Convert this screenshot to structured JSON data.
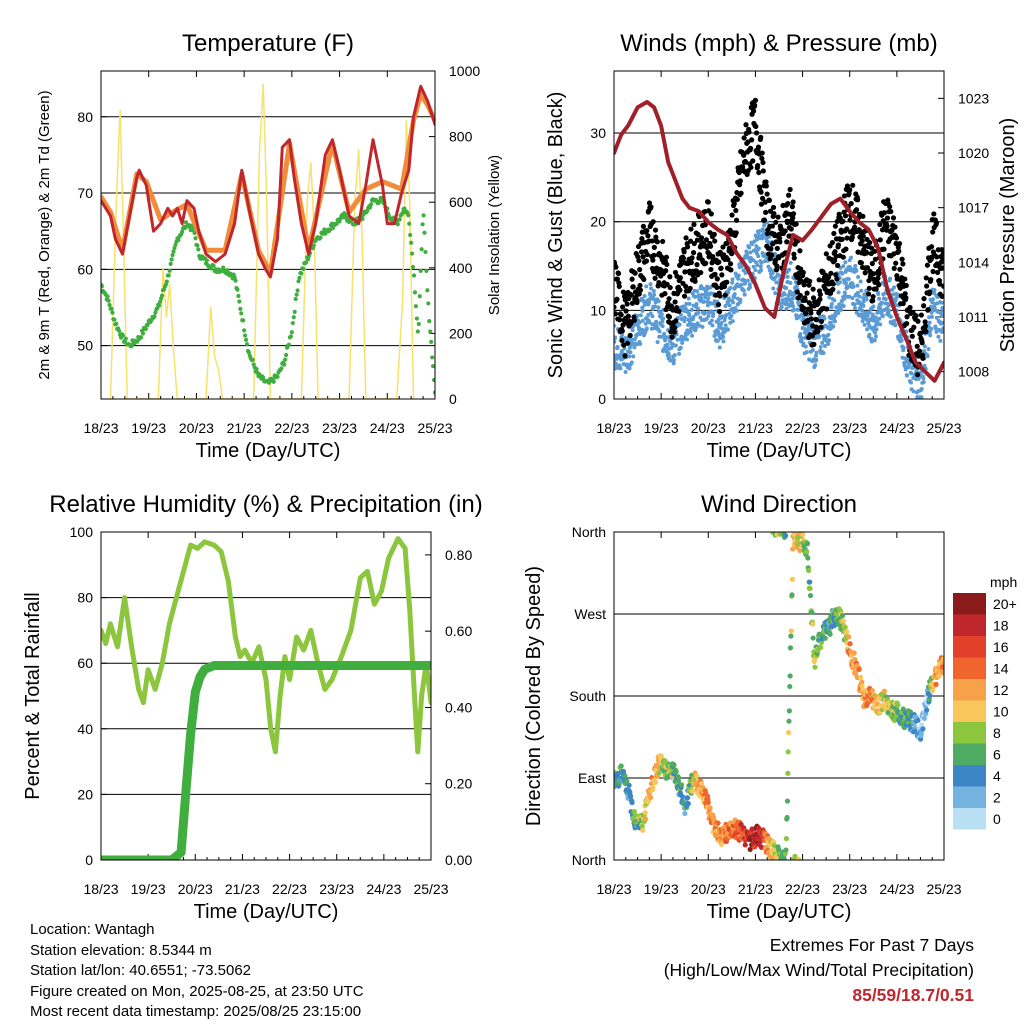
{
  "colors": {
    "temp_red": "#c0272d",
    "temp_orange": "#f08c3a",
    "dewpoint_green": "#3fae3f",
    "solar_yellow": "#f7e26b",
    "wind_blue": "#5b9bd5",
    "gust_black": "#000000",
    "pressure_maroon": "#a0202a",
    "rh_green": "#8cc63f",
    "precip_green": "#3fae3f",
    "extremes_red": "#c0272d"
  },
  "info": {
    "location": "Location: Wantagh",
    "elevation": "Station elevation: 8.5344 m",
    "latlon": "Station lat/lon: 40.6551; -73.5062",
    "created": "Figure created on Mon, 2025-08-25, at 23:50 UTC",
    "recent": "Most recent data timestamp: 2025/08/25 23:15:00"
  },
  "extremes": {
    "line1": "Extremes For Past 7 Days",
    "line2": "(High/Low/Max Wind/Total Precipitation)",
    "values": "85/59/18.7/0.51"
  },
  "chart_data": [
    {
      "id": "temperature",
      "type": "line",
      "title": "Temperature (F)",
      "xlabel": "Time (Day/UTC)",
      "ylabel": "2m & 9m T (Red, Orange) & 2m Td (Green)",
      "y2label": "Solar Insolation (Yellow)",
      "x_ticks": [
        "18/23",
        "19/23",
        "20/23",
        "21/23",
        "22/23",
        "23/23",
        "24/23",
        "25/23"
      ],
      "xlim": [
        0,
        7
      ],
      "ylim": [
        43,
        86
      ],
      "y_ticks": [
        50,
        60,
        70,
        80
      ],
      "y2lim": [
        0,
        1000
      ],
      "y2_ticks": [
        0,
        200,
        400,
        600,
        800,
        1000
      ],
      "grid": "horizontal",
      "series": [
        {
          "name": "2m T",
          "axis": "left",
          "x": [
            0,
            0.1,
            0.2,
            0.3,
            0.45,
            0.6,
            0.75,
            0.8,
            0.95,
            1.1,
            1.25,
            1.4,
            1.5,
            1.6,
            1.7,
            1.8,
            1.95,
            2.05,
            2.2,
            2.4,
            2.6,
            2.8,
            2.95,
            3.1,
            3.3,
            3.45,
            3.55,
            3.7,
            3.8,
            3.95,
            4.05,
            4.2,
            4.35,
            4.5,
            4.7,
            4.85,
            5.0,
            5.2,
            5.4,
            5.55,
            5.7,
            5.9,
            6.0,
            6.15,
            6.3,
            6.45,
            6.55,
            6.7,
            6.85,
            6.95,
            7.0
          ],
          "y": [
            69,
            68,
            67,
            64,
            62,
            67,
            72,
            73,
            71,
            65,
            66,
            68,
            67,
            68,
            66,
            69,
            68,
            65,
            62,
            61,
            62,
            66,
            73,
            68,
            62,
            60,
            59,
            64,
            76,
            77,
            72,
            66,
            62,
            66,
            75,
            77,
            73,
            67,
            66,
            71,
            77,
            71,
            66,
            66,
            70,
            73,
            80,
            84,
            82,
            80,
            79
          ]
        },
        {
          "name": "9m T",
          "axis": "left",
          "x": [
            0,
            0.2,
            0.45,
            0.75,
            0.95,
            1.25,
            1.5,
            1.8,
            2.2,
            2.6,
            2.95,
            3.3,
            3.55,
            3.95,
            4.35,
            4.85,
            5.2,
            5.55,
            5.9,
            6.3,
            6.55,
            6.7,
            6.85,
            7.0
          ],
          "y": [
            69.5,
            67.5,
            62.5,
            72.5,
            71.5,
            66.5,
            67.5,
            68.5,
            62.5,
            62.5,
            72.5,
            62.5,
            59.5,
            76.5,
            62.5,
            76.5,
            67.5,
            70.5,
            71.5,
            70.5,
            79.5,
            83,
            81.5,
            79.5
          ]
        },
        {
          "name": "2m Td",
          "axis": "left",
          "x": [
            0,
            0.15,
            0.3,
            0.45,
            0.6,
            0.8,
            1.0,
            1.2,
            1.4,
            1.6,
            1.8,
            1.95,
            2.05,
            2.2,
            2.4,
            2.6,
            2.8,
            2.95,
            3.1,
            3.3,
            3.5,
            3.7,
            3.85,
            4.0,
            4.15,
            4.3,
            4.5,
            4.7,
            4.9,
            5.1,
            5.3,
            5.5,
            5.7,
            5.9,
            6.05,
            6.2,
            6.35,
            6.45,
            6.55,
            6.65,
            6.75,
            6.85,
            6.95,
            7.0
          ],
          "y": [
            58,
            56,
            53,
            51,
            50,
            51,
            53,
            55,
            59,
            64,
            66,
            65,
            62,
            61,
            60,
            60,
            59,
            54,
            49,
            46,
            45,
            46,
            48,
            52,
            59,
            61,
            64,
            65,
            66,
            67,
            66,
            67,
            69,
            69,
            67,
            66,
            68,
            67,
            60,
            51,
            68,
            56,
            48,
            44
          ]
        },
        {
          "name": "Solar Insolation",
          "axis": "right",
          "x": [
            0.2,
            0.32,
            0.4,
            0.47,
            0.55,
            1.2,
            1.3,
            1.37,
            1.44,
            1.52,
            1.6,
            2.2,
            2.3,
            2.38,
            2.46,
            2.55,
            3.2,
            3.32,
            3.4,
            3.47,
            3.55,
            4.2,
            4.32,
            4.4,
            4.47,
            4.55,
            5.2,
            5.32,
            5.4,
            5.47,
            5.55,
            6.2,
            6.32,
            6.4,
            6.47,
            6.55
          ],
          "y": [
            0,
            600,
            880,
            500,
            0,
            0,
            400,
            250,
            350,
            150,
            0,
            0,
            280,
            130,
            90,
            0,
            0,
            750,
            960,
            620,
            0,
            0,
            600,
            720,
            500,
            0,
            0,
            600,
            760,
            500,
            0,
            0,
            300,
            850,
            600,
            0
          ]
        }
      ]
    },
    {
      "id": "winds",
      "type": "scatter",
      "title": "Winds (mph) & Pressure (mb)",
      "xlabel": "Time (Day/UTC)",
      "ylabel": "Sonic Wind & Gust (Blue, Black)",
      "y2label": "Station Pressure (Maroon)",
      "x_ticks": [
        "18/23",
        "19/23",
        "20/23",
        "21/23",
        "22/23",
        "23/23",
        "24/23",
        "25/23"
      ],
      "xlim": [
        0,
        7
      ],
      "ylim": [
        0,
        37
      ],
      "y_ticks": [
        0,
        10,
        20,
        30
      ],
      "y2lim": [
        1006.5,
        1024.5
      ],
      "y2_ticks": [
        1008,
        1011,
        1014,
        1017,
        1020,
        1023
      ],
      "grid": "horizontal",
      "series": [
        {
          "name": "Sonic Wind",
          "axis": "left",
          "x": [
            0,
            0.25,
            0.5,
            0.75,
            1.0,
            1.25,
            1.5,
            1.75,
            2.0,
            2.25,
            2.5,
            2.75,
            3.0,
            3.25,
            3.5,
            3.75,
            4.0,
            4.25,
            4.5,
            4.75,
            5.0,
            5.25,
            5.5,
            5.75,
            6.0,
            6.25,
            6.5,
            6.75,
            7.0
          ],
          "y": [
            6,
            5,
            8,
            11,
            8,
            6,
            9,
            10,
            11,
            8,
            11,
            14,
            16,
            18,
            12,
            13,
            8,
            6,
            8,
            12,
            14,
            11,
            8,
            12,
            10,
            4,
            1,
            11,
            8
          ]
        },
        {
          "name": "Gust",
          "axis": "left",
          "x": [
            0,
            0.25,
            0.5,
            0.75,
            1.0,
            1.25,
            1.5,
            1.75,
            2.0,
            2.25,
            2.5,
            2.75,
            3.0,
            3.25,
            3.5,
            3.75,
            4.0,
            4.25,
            4.5,
            4.75,
            5.0,
            5.25,
            5.5,
            5.75,
            6.0,
            6.25,
            6.5,
            6.75,
            7.0
          ],
          "y": [
            13,
            8,
            14,
            19,
            15,
            10,
            15,
            17,
            19,
            13,
            18,
            27,
            31,
            20,
            17,
            21,
            11,
            9,
            13,
            17,
            22,
            18,
            13,
            20,
            17,
            8,
            5,
            18,
            14
          ]
        },
        {
          "name": "Station Pressure",
          "axis": "right",
          "x": [
            0,
            0.15,
            0.3,
            0.5,
            0.7,
            0.85,
            1.0,
            1.15,
            1.3,
            1.45,
            1.6,
            1.8,
            2.0,
            2.2,
            2.4,
            2.6,
            2.8,
            3.0,
            3.2,
            3.4,
            3.6,
            3.8,
            4.0,
            4.2,
            4.4,
            4.6,
            4.8,
            5.0,
            5.2,
            5.4,
            5.6,
            5.8,
            6.0,
            6.2,
            6.4,
            6.6,
            6.8,
            7.0
          ],
          "y": [
            1020,
            1021,
            1021.5,
            1022.5,
            1022.8,
            1022.5,
            1021.5,
            1019.5,
            1018.5,
            1017.5,
            1017,
            1016.8,
            1016.2,
            1015.8,
            1015.5,
            1014.5,
            1013.8,
            1012.8,
            1011.5,
            1011,
            1013.5,
            1015.5,
            1015.2,
            1015.8,
            1016.5,
            1017.2,
            1017.5,
            1016.8,
            1016.2,
            1015.8,
            1014.8,
            1012.5,
            1011,
            1009.8,
            1008.5,
            1008,
            1007.5,
            1008.5
          ]
        }
      ]
    },
    {
      "id": "humidity",
      "type": "line",
      "title": "Relative Humidity (%) & Precipitation (in)",
      "xlabel": "Time (Day/UTC)",
      "ylabel": "Percent & Total Rainfall",
      "x_ticks": [
        "18/23",
        "19/23",
        "20/23",
        "21/23",
        "22/23",
        "23/23",
        "24/23",
        "25/23"
      ],
      "xlim": [
        0,
        7
      ],
      "ylim": [
        0,
        100
      ],
      "y_ticks": [
        0,
        20,
        40,
        60,
        80,
        100
      ],
      "y2lim": [
        0,
        0.86
      ],
      "y2_ticks": [
        "0.00",
        "0.20",
        "0.40",
        "0.60",
        "0.80"
      ],
      "grid": "horizontal",
      "series": [
        {
          "name": "Relative Humidity",
          "axis": "left",
          "x": [
            0,
            0.1,
            0.2,
            0.35,
            0.5,
            0.65,
            0.8,
            0.9,
            1.0,
            1.15,
            1.3,
            1.45,
            1.6,
            1.75,
            1.9,
            2.05,
            2.2,
            2.4,
            2.55,
            2.7,
            2.85,
            2.95,
            3.05,
            3.2,
            3.35,
            3.5,
            3.6,
            3.7,
            3.8,
            3.9,
            4.0,
            4.15,
            4.3,
            4.45,
            4.6,
            4.75,
            4.9,
            5.1,
            5.3,
            5.5,
            5.65,
            5.8,
            5.95,
            6.1,
            6.3,
            6.45,
            6.55,
            6.65,
            6.72,
            6.8,
            6.9,
            7.0
          ],
          "y": [
            70,
            66,
            72,
            65,
            80,
            65,
            52,
            48,
            58,
            52,
            60,
            72,
            80,
            88,
            96,
            95,
            97,
            96,
            94,
            85,
            68,
            62,
            64,
            60,
            65,
            55,
            40,
            33,
            50,
            62,
            55,
            68,
            64,
            70,
            60,
            52,
            55,
            62,
            70,
            86,
            88,
            78,
            82,
            92,
            98,
            95,
            76,
            50,
            33,
            50,
            60,
            48
          ]
        },
        {
          "name": "Total Rainfall",
          "axis": "right",
          "x": [
            0,
            1.5,
            1.7,
            1.8,
            1.9,
            2.0,
            2.1,
            2.2,
            2.4,
            7.0
          ],
          "y": [
            0,
            0,
            0.02,
            0.18,
            0.33,
            0.44,
            0.48,
            0.5,
            0.51,
            0.51
          ]
        }
      ]
    },
    {
      "id": "direction",
      "type": "scatter",
      "title": "Wind Direction",
      "xlabel": "Time (Day/UTC)",
      "ylabel": "Direction (Colored By Speed)",
      "x_ticks": [
        "18/23",
        "19/23",
        "20/23",
        "21/23",
        "22/23",
        "23/23",
        "24/23",
        "25/23"
      ],
      "xlim": [
        0,
        7
      ],
      "ylim": [
        0,
        360
      ],
      "y_ticks": [
        "North",
        "East",
        "South",
        "West",
        "North"
      ],
      "y_tick_values": [
        0,
        90,
        180,
        270,
        360
      ],
      "grid": "horizontal",
      "legend_title": "mph",
      "legend_placement": "right",
      "legend_levels": [
        "20+",
        "18",
        "16",
        "14",
        "12",
        "10",
        "8",
        "6",
        "4",
        "2",
        "0"
      ],
      "legend_colors": [
        "#8b1a1a",
        "#c0272d",
        "#e3402b",
        "#f0652e",
        "#f7a24b",
        "#f8c65a",
        "#8cc63f",
        "#4faa64",
        "#3d86c6",
        "#74b3e0",
        "#b9dff5"
      ],
      "series": [
        {
          "name": "Direction",
          "x": [
            0.0,
            0.15,
            0.3,
            0.45,
            0.6,
            0.8,
            0.95,
            1.1,
            1.3,
            1.5,
            1.7,
            1.9,
            2.1,
            2.3,
            2.5,
            2.7,
            2.9,
            3.05,
            3.2,
            3.35,
            3.5,
            3.65,
            3.8,
            3.95,
            4.1,
            4.25,
            4.4,
            4.55,
            4.7,
            4.85,
            5.0,
            5.15,
            5.3,
            5.45,
            5.6,
            5.75,
            5.9,
            6.05,
            6.2,
            6.35,
            6.5,
            6.65,
            6.8,
            6.95
          ],
          "y": [
            85,
            95,
            75,
            45,
            40,
            80,
            105,
            100,
            95,
            60,
            90,
            75,
            40,
            25,
            35,
            30,
            22,
            28,
            20,
            10,
            5,
            5,
            355,
            350,
            345,
            220,
            245,
            255,
            270,
            260,
            230,
            210,
            175,
            180,
            170,
            175,
            165,
            160,
            155,
            150,
            140,
            180,
            200,
            215
          ],
          "speed": [
            6,
            5,
            4,
            6,
            8,
            12,
            10,
            8,
            6,
            4,
            10,
            12,
            13,
            12,
            14,
            16,
            18,
            20,
            14,
            10,
            8,
            6,
            9,
            10,
            6,
            8,
            6,
            4,
            6,
            8,
            12,
            14,
            12,
            13,
            10,
            9,
            8,
            6,
            6,
            4,
            2,
            2,
            12,
            12
          ]
        }
      ]
    }
  ]
}
